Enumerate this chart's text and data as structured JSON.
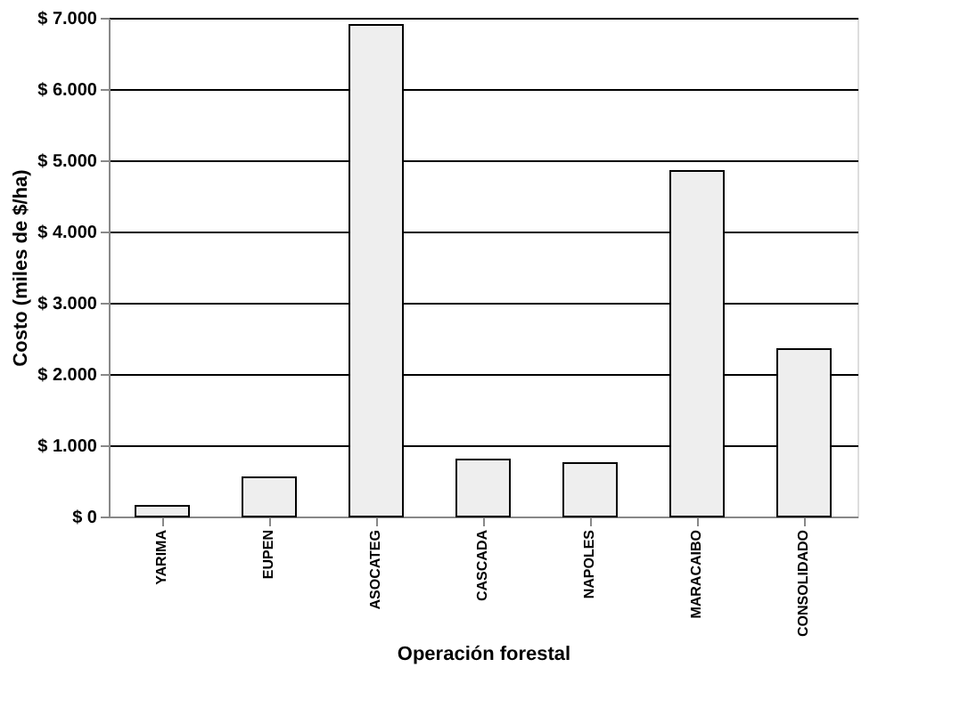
{
  "chart_data": {
    "type": "bar",
    "xlabel": "Operación forestal",
    "ylabel": "Costo (miles de $/ha)",
    "categories": [
      "YARIMA",
      "EUPEN",
      "ASOCATEG",
      "CASCADA",
      "NAPOLES",
      "MARACAIBO",
      "CONSOLIDADO"
    ],
    "values": [
      150,
      550,
      6900,
      800,
      750,
      4850,
      2350
    ],
    "color": "#eeeeee",
    "ylim": [
      0,
      7000
    ],
    "yticks": [
      {
        "value": 0,
        "label": "$ 0"
      },
      {
        "value": 1000,
        "label": "$ 1.000"
      },
      {
        "value": 2000,
        "label": "$ 2.000"
      },
      {
        "value": 3000,
        "label": "$ 3.000"
      },
      {
        "value": 4000,
        "label": "$ 4.000"
      },
      {
        "value": 5000,
        "label": "$ 5.000"
      },
      {
        "value": 6000,
        "label": "$ 6.000"
      },
      {
        "value": 7000,
        "label": "$ 7.000"
      }
    ],
    "grid": "y"
  }
}
